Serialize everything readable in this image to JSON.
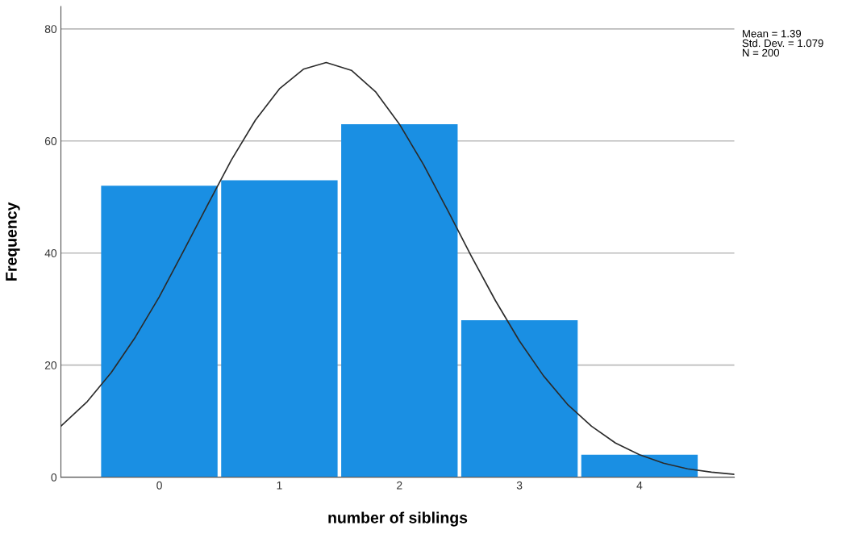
{
  "chart_data": {
    "type": "histogram",
    "xlabel": "number of siblings",
    "ylabel": "Frequency",
    "bins": [
      -0.5,
      0.5,
      1.5,
      2.5,
      3.5,
      4.5
    ],
    "values": [
      52,
      53,
      63,
      28,
      4
    ],
    "color": "#1a8fe3",
    "series": [
      {
        "type": "line",
        "color": "#2b2b2b",
        "x": [
          -0.82,
          -0.6,
          -0.4,
          -0.2,
          0,
          0.2,
          0.4,
          0.6,
          0.8,
          1.0,
          1.2,
          1.39,
          1.6,
          1.8,
          2.0,
          2.2,
          2.4,
          2.6,
          2.8,
          3.0,
          3.2,
          3.4,
          3.6,
          3.8,
          4.0,
          4.2,
          4.4,
          4.6,
          4.79
        ],
        "values": [
          9.1,
          13.5,
          18.7,
          25.0,
          32.2,
          40.3,
          48.5,
          56.6,
          63.7,
          69.3,
          72.8,
          74.0,
          72.6,
          68.8,
          63.0,
          55.8,
          47.7,
          39.4,
          31.5,
          24.3,
          18.1,
          13.0,
          9.1,
          6.1,
          4.0,
          2.5,
          1.5,
          0.9,
          0.5
        ]
      }
    ],
    "xlim": [
      -0.82,
      4.79
    ],
    "xticks": [
      0,
      1,
      2,
      3,
      4
    ],
    "ylim": [
      0,
      84
    ],
    "yticks": [
      0,
      20,
      40,
      60,
      80
    ],
    "grid": "y",
    "annotations": [
      "Mean = 1.39\nStd. Dev. = 1.079\nN = 200"
    ]
  }
}
